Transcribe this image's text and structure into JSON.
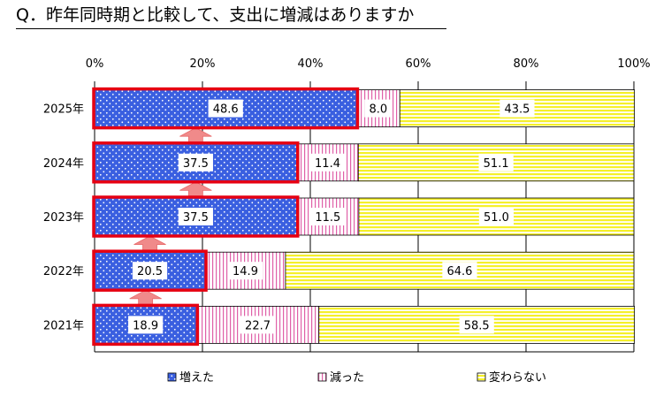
{
  "title": "Q．昨年同時期と比較して、支出に増減はありますか",
  "chart_data": {
    "type": "bar",
    "orientation": "horizontal",
    "stacked": true,
    "categories": [
      "2025年",
      "2024年",
      "2023年",
      "2022年",
      "2021年"
    ],
    "series": [
      {
        "name": "増えた",
        "values": [
          48.6,
          37.5,
          37.5,
          20.5,
          18.9
        ],
        "color": "#3a5fe0",
        "pattern": "dots",
        "highlighted": true
      },
      {
        "name": "減った",
        "values": [
          8.0,
          11.4,
          11.5,
          14.9,
          22.7
        ],
        "color": "#e060a8",
        "pattern": "vertical-lines"
      },
      {
        "name": "変わらない",
        "values": [
          43.5,
          51.1,
          51.0,
          64.6,
          58.5
        ],
        "color": "#f5f02a",
        "pattern": "horizontal-lines"
      }
    ],
    "value_labels": [
      [
        "48.6",
        "8.0",
        "43.5"
      ],
      [
        "37.5",
        "11.4",
        "51.1"
      ],
      [
        "37.5",
        "11.5",
        "51.0"
      ],
      [
        "20.5",
        "14.9",
        "64.6"
      ],
      [
        "18.9",
        "22.7",
        "58.5"
      ]
    ],
    "xticks": [
      "0%",
      "20%",
      "40%",
      "60%",
      "80%",
      "100%"
    ],
    "xlim": [
      0,
      100
    ],
    "grid": true,
    "legend_position": "bottom",
    "highlight_color": "#e60012",
    "arrow_color": "#f08a8a"
  }
}
